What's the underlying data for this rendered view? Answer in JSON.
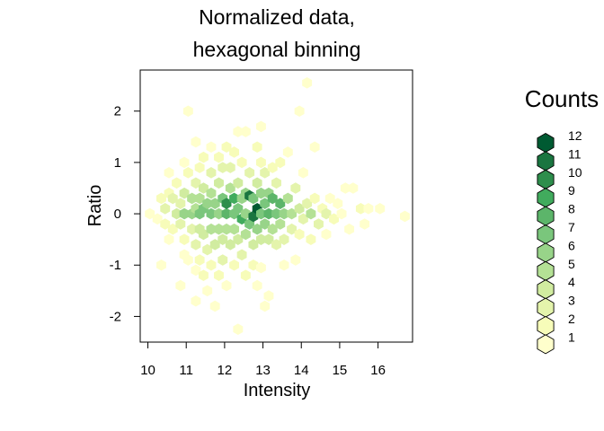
{
  "chart_data": {
    "type": "scatter",
    "title_lines": [
      "Normalized data,",
      "hexagonal binning"
    ],
    "xlabel": "Intensity",
    "ylabel": "Ratio",
    "xlim": [
      9.8,
      16.9
    ],
    "ylim": [
      -2.5,
      2.8
    ],
    "x_ticks": [
      "10",
      "11",
      "12",
      "13",
      "14",
      "15",
      "16"
    ],
    "y_ticks": [
      "-2",
      "-1",
      "0",
      "1",
      "2"
    ],
    "grid": false,
    "legend": {
      "title": "Counts",
      "placement": "right",
      "labels": [
        "12",
        "11",
        "10",
        "9",
        "8",
        "7",
        "6",
        "5",
        "4",
        "3",
        "2",
        "1"
      ]
    },
    "colors": [
      "#FFFFCC",
      "#F7FCB9",
      "#E4F4AC",
      "#D1ECA0",
      "#B4E195",
      "#98D489",
      "#7AC67C",
      "#5CB56A",
      "#41AB5D",
      "#2E8E4C",
      "#1A7540",
      "#005A32"
    ],
    "hex_bins": [
      {
        "x": 10.05,
        "y": 0.0,
        "count": 1
      },
      {
        "x": 10.25,
        "y": -0.1,
        "count": 1
      },
      {
        "x": 10.35,
        "y": 0.3,
        "count": 2
      },
      {
        "x": 10.45,
        "y": -0.2,
        "count": 2
      },
      {
        "x": 10.45,
        "y": 0.1,
        "count": 3
      },
      {
        "x": 10.55,
        "y": 0.4,
        "count": 2
      },
      {
        "x": 10.55,
        "y": 0.8,
        "count": 1
      },
      {
        "x": 10.55,
        "y": -0.5,
        "count": 1
      },
      {
        "x": 10.35,
        "y": -1.0,
        "count": 1
      },
      {
        "x": 10.65,
        "y": -0.3,
        "count": 2
      },
      {
        "x": 10.75,
        "y": 0.0,
        "count": 4
      },
      {
        "x": 10.65,
        "y": 0.3,
        "count": 3
      },
      {
        "x": 10.75,
        "y": 0.6,
        "count": 2
      },
      {
        "x": 10.85,
        "y": -0.2,
        "count": 3
      },
      {
        "x": 10.85,
        "y": 0.2,
        "count": 3
      },
      {
        "x": 10.95,
        "y": 0.0,
        "count": 6
      },
      {
        "x": 10.95,
        "y": 0.4,
        "count": 4
      },
      {
        "x": 10.95,
        "y": -0.5,
        "count": 2
      },
      {
        "x": 10.95,
        "y": -0.8,
        "count": 1
      },
      {
        "x": 10.95,
        "y": 1.0,
        "count": 1
      },
      {
        "x": 10.85,
        "y": -1.4,
        "count": 1
      },
      {
        "x": 11.05,
        "y": -0.9,
        "count": 1
      },
      {
        "x": 11.05,
        "y": 0.8,
        "count": 2
      },
      {
        "x": 11.05,
        "y": 2.0,
        "count": 1
      },
      {
        "x": 11.15,
        "y": 0.0,
        "count": 6
      },
      {
        "x": 11.15,
        "y": -0.3,
        "count": 3
      },
      {
        "x": 11.15,
        "y": 0.3,
        "count": 5
      },
      {
        "x": 11.25,
        "y": 0.1,
        "count": 5
      },
      {
        "x": 11.25,
        "y": 0.6,
        "count": 3
      },
      {
        "x": 11.25,
        "y": -0.6,
        "count": 3
      },
      {
        "x": 11.25,
        "y": 1.4,
        "count": 1
      },
      {
        "x": 11.25,
        "y": -1.1,
        "count": 1
      },
      {
        "x": 11.25,
        "y": -1.7,
        "count": 1
      },
      {
        "x": 11.35,
        "y": 0.0,
        "count": 7
      },
      {
        "x": 11.35,
        "y": 0.3,
        "count": 5
      },
      {
        "x": 11.35,
        "y": -0.3,
        "count": 4
      },
      {
        "x": 11.35,
        "y": 0.9,
        "count": 2
      },
      {
        "x": 11.35,
        "y": -0.9,
        "count": 2
      },
      {
        "x": 11.45,
        "y": 0.1,
        "count": 7
      },
      {
        "x": 11.45,
        "y": 0.5,
        "count": 4
      },
      {
        "x": 11.45,
        "y": -0.4,
        "count": 4
      },
      {
        "x": 11.45,
        "y": 1.1,
        "count": 2
      },
      {
        "x": 11.45,
        "y": -1.2,
        "count": 2
      },
      {
        "x": 11.55,
        "y": -0.7,
        "count": 3
      },
      {
        "x": 11.55,
        "y": -1.5,
        "count": 1
      },
      {
        "x": 11.55,
        "y": 0.2,
        "count": 6
      },
      {
        "x": 11.65,
        "y": 0.0,
        "count": 7
      },
      {
        "x": 11.65,
        "y": 0.4,
        "count": 5
      },
      {
        "x": 11.65,
        "y": -0.3,
        "count": 5
      },
      {
        "x": 11.65,
        "y": 0.8,
        "count": 3
      },
      {
        "x": 11.65,
        "y": -1.0,
        "count": 2
      },
      {
        "x": 11.65,
        "y": 1.3,
        "count": 1
      },
      {
        "x": 11.75,
        "y": -0.6,
        "count": 4
      },
      {
        "x": 11.75,
        "y": 0.2,
        "count": 6
      },
      {
        "x": 11.75,
        "y": -1.8,
        "count": 1
      },
      {
        "x": 11.85,
        "y": 0.0,
        "count": 6
      },
      {
        "x": 11.85,
        "y": -0.3,
        "count": 5
      },
      {
        "x": 11.85,
        "y": 0.6,
        "count": 4
      },
      {
        "x": 11.85,
        "y": 1.1,
        "count": 2
      },
      {
        "x": 11.85,
        "y": -1.2,
        "count": 2
      },
      {
        "x": 11.95,
        "y": 0.3,
        "count": 7
      },
      {
        "x": 11.95,
        "y": -0.5,
        "count": 4
      },
      {
        "x": 11.95,
        "y": 0.9,
        "count": 3
      },
      {
        "x": 11.95,
        "y": -0.9,
        "count": 3
      },
      {
        "x": 12.05,
        "y": 0.0,
        "count": 8
      },
      {
        "x": 12.05,
        "y": 0.2,
        "count": 10
      },
      {
        "x": 12.05,
        "y": -0.3,
        "count": 5
      },
      {
        "x": 12.05,
        "y": 1.3,
        "count": 2
      },
      {
        "x": 12.05,
        "y": -1.4,
        "count": 1
      },
      {
        "x": 12.15,
        "y": 0.5,
        "count": 5
      },
      {
        "x": 12.15,
        "y": -0.6,
        "count": 4
      },
      {
        "x": 12.15,
        "y": 0.9,
        "count": 3
      },
      {
        "x": 12.25,
        "y": 0.0,
        "count": 7
      },
      {
        "x": 12.25,
        "y": 0.3,
        "count": 9
      },
      {
        "x": 12.25,
        "y": -0.3,
        "count": 5
      },
      {
        "x": 12.25,
        "y": -1.0,
        "count": 2
      },
      {
        "x": 12.25,
        "y": 1.2,
        "count": 2
      },
      {
        "x": 12.35,
        "y": 0.6,
        "count": 4
      },
      {
        "x": 12.35,
        "y": -0.5,
        "count": 4
      },
      {
        "x": 12.35,
        "y": 0.1,
        "count": 7
      },
      {
        "x": 12.35,
        "y": 1.6,
        "count": 1
      },
      {
        "x": 12.35,
        "y": -2.25,
        "count": 1
      },
      {
        "x": 12.45,
        "y": -0.1,
        "count": 9
      },
      {
        "x": 12.45,
        "y": 0.3,
        "count": 6
      },
      {
        "x": 12.45,
        "y": -0.8,
        "count": 3
      },
      {
        "x": 12.45,
        "y": 1.0,
        "count": 2
      },
      {
        "x": 12.55,
        "y": 0.0,
        "count": 6
      },
      {
        "x": 12.55,
        "y": 0.4,
        "count": 6
      },
      {
        "x": 12.55,
        "y": -0.4,
        "count": 5
      },
      {
        "x": 12.55,
        "y": -1.2,
        "count": 2
      },
      {
        "x": 12.55,
        "y": 1.6,
        "count": 1
      },
      {
        "x": 12.65,
        "y": 0.35,
        "count": 11
      },
      {
        "x": 12.65,
        "y": 0.8,
        "count": 3
      },
      {
        "x": 12.65,
        "y": -0.2,
        "count": 7
      },
      {
        "x": 12.75,
        "y": -0.05,
        "count": 11
      },
      {
        "x": 12.75,
        "y": 0.3,
        "count": 7
      },
      {
        "x": 12.75,
        "y": -0.6,
        "count": 4
      },
      {
        "x": 12.75,
        "y": -1.0,
        "count": 2
      },
      {
        "x": 12.85,
        "y": 0.1,
        "count": 12
      },
      {
        "x": 12.85,
        "y": -0.3,
        "count": 6
      },
      {
        "x": 12.85,
        "y": 0.6,
        "count": 4
      },
      {
        "x": 12.85,
        "y": 1.3,
        "count": 2
      },
      {
        "x": 12.85,
        "y": -1.4,
        "count": 1
      },
      {
        "x": 12.95,
        "y": 0.0,
        "count": 7
      },
      {
        "x": 12.95,
        "y": 0.4,
        "count": 6
      },
      {
        "x": 12.95,
        "y": -0.5,
        "count": 4
      },
      {
        "x": 12.95,
        "y": 1.0,
        "count": 2
      },
      {
        "x": 12.95,
        "y": 1.7,
        "count": 1
      },
      {
        "x": 12.95,
        "y": -1.05,
        "count": 1
      },
      {
        "x": 13.05,
        "y": 0.2,
        "count": 7
      },
      {
        "x": 13.05,
        "y": -0.2,
        "count": 6
      },
      {
        "x": 13.05,
        "y": 0.8,
        "count": 3
      },
      {
        "x": 13.05,
        "y": -1.8,
        "count": 1
      },
      {
        "x": 13.15,
        "y": 0.0,
        "count": 8
      },
      {
        "x": 13.15,
        "y": 0.4,
        "count": 6
      },
      {
        "x": 13.15,
        "y": -0.5,
        "count": 4
      },
      {
        "x": 13.15,
        "y": -1.6,
        "count": 1
      },
      {
        "x": 13.25,
        "y": 0.3,
        "count": 8
      },
      {
        "x": 13.25,
        "y": -0.3,
        "count": 5
      },
      {
        "x": 13.25,
        "y": 0.9,
        "count": 2
      },
      {
        "x": 13.35,
        "y": 0.0,
        "count": 7
      },
      {
        "x": 13.35,
        "y": -0.6,
        "count": 3
      },
      {
        "x": 13.35,
        "y": 0.6,
        "count": 3
      },
      {
        "x": 13.45,
        "y": 0.2,
        "count": 8
      },
      {
        "x": 13.45,
        "y": -0.2,
        "count": 5
      },
      {
        "x": 13.45,
        "y": 1.0,
        "count": 2
      },
      {
        "x": 13.55,
        "y": 0.0,
        "count": 6
      },
      {
        "x": 13.55,
        "y": -0.5,
        "count": 3
      },
      {
        "x": 13.55,
        "y": -1.0,
        "count": 1
      },
      {
        "x": 13.65,
        "y": 0.3,
        "count": 5
      },
      {
        "x": 13.65,
        "y": 1.2,
        "count": 1
      },
      {
        "x": 13.75,
        "y": 0.0,
        "count": 5
      },
      {
        "x": 13.75,
        "y": -0.3,
        "count": 3
      },
      {
        "x": 13.85,
        "y": 0.5,
        "count": 3
      },
      {
        "x": 13.85,
        "y": -0.9,
        "count": 1
      },
      {
        "x": 13.95,
        "y": 0.1,
        "count": 4
      },
      {
        "x": 13.95,
        "y": -0.4,
        "count": 2
      },
      {
        "x": 13.95,
        "y": 2.0,
        "count": 1
      },
      {
        "x": 14.05,
        "y": 0.8,
        "count": 1
      },
      {
        "x": 14.05,
        "y": -0.1,
        "count": 3
      },
      {
        "x": 14.15,
        "y": 0.2,
        "count": 3
      },
      {
        "x": 14.15,
        "y": 2.55,
        "count": 1
      },
      {
        "x": 14.25,
        "y": 0.0,
        "count": 5
      },
      {
        "x": 14.25,
        "y": -0.5,
        "count": 2
      },
      {
        "x": 14.35,
        "y": 0.3,
        "count": 2
      },
      {
        "x": 14.35,
        "y": 1.3,
        "count": 1
      },
      {
        "x": 14.45,
        "y": -0.2,
        "count": 3
      },
      {
        "x": 14.55,
        "y": 0.1,
        "count": 2
      },
      {
        "x": 14.65,
        "y": 0.0,
        "count": 3
      },
      {
        "x": 14.65,
        "y": -0.4,
        "count": 1
      },
      {
        "x": 14.75,
        "y": 0.3,
        "count": 1
      },
      {
        "x": 14.85,
        "y": -0.1,
        "count": 2
      },
      {
        "x": 14.95,
        "y": 0.2,
        "count": 1
      },
      {
        "x": 15.05,
        "y": 0.0,
        "count": 1
      },
      {
        "x": 15.15,
        "y": 0.5,
        "count": 1
      },
      {
        "x": 15.25,
        "y": -0.3,
        "count": 1
      },
      {
        "x": 15.35,
        "y": 0.5,
        "count": 1
      },
      {
        "x": 15.55,
        "y": 0.1,
        "count": 2
      },
      {
        "x": 15.65,
        "y": -0.2,
        "count": 1
      },
      {
        "x": 15.75,
        "y": 0.1,
        "count": 1
      },
      {
        "x": 16.05,
        "y": 0.1,
        "count": 1
      },
      {
        "x": 16.7,
        "y": -0.05,
        "count": 1
      }
    ]
  }
}
